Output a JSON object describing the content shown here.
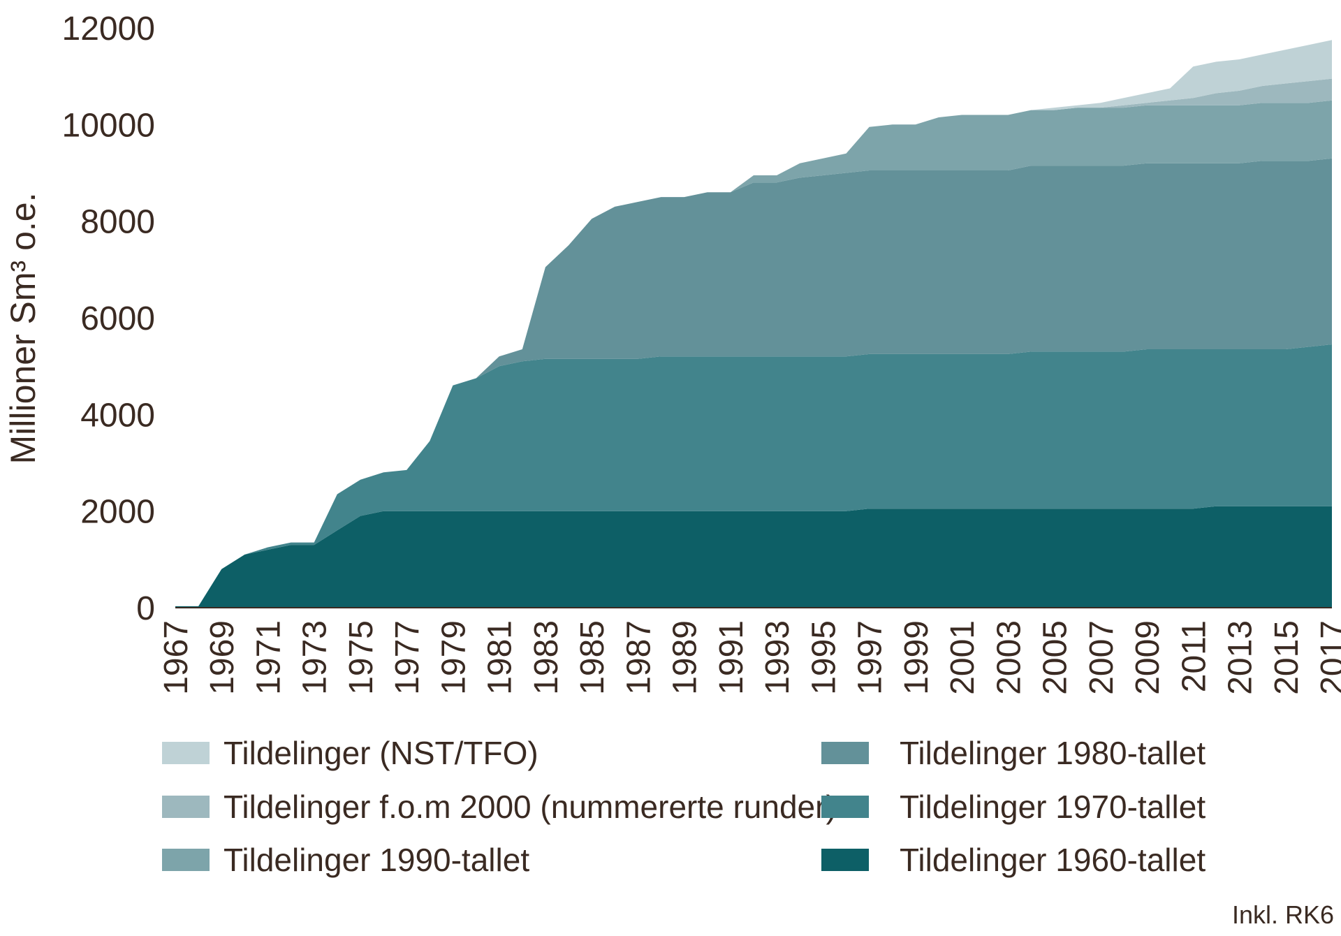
{
  "chart_data": {
    "type": "area",
    "stacked": true,
    "ylabel": "Millioner Sm³ o.e.",
    "xlabel": "",
    "title": "",
    "ylim": [
      0,
      12000
    ],
    "y_ticks": [
      0,
      2000,
      4000,
      6000,
      8000,
      10000,
      12000
    ],
    "x_tick_labels": [
      "1967",
      "1969",
      "1971",
      "1973",
      "1975",
      "1977",
      "1979",
      "1981",
      "1983",
      "1985",
      "1987",
      "1989",
      "1991",
      "1993",
      "1995",
      "1997",
      "1999",
      "2001",
      "2003",
      "2005",
      "2007",
      "2009",
      "2011",
      "2013",
      "2015",
      "2017"
    ],
    "x": [
      1967,
      1968,
      1969,
      1970,
      1971,
      1972,
      1973,
      1974,
      1975,
      1976,
      1977,
      1978,
      1979,
      1980,
      1981,
      1982,
      1983,
      1984,
      1985,
      1986,
      1987,
      1988,
      1989,
      1990,
      1991,
      1992,
      1993,
      1994,
      1995,
      1996,
      1997,
      1998,
      1999,
      2000,
      2001,
      2002,
      2003,
      2004,
      2005,
      2006,
      2007,
      2008,
      2009,
      2010,
      2011,
      2012,
      2013,
      2014,
      2015,
      2016,
      2017
    ],
    "series": [
      {
        "name": "Tildelinger 1960-tallet",
        "color": "#0d5f66",
        "values": [
          30,
          30,
          800,
          1100,
          1200,
          1300,
          1300,
          1600,
          1900,
          2000,
          2000,
          2000,
          2000,
          2000,
          2000,
          2000,
          2000,
          2000,
          2000,
          2000,
          2000,
          2000,
          2000,
          2000,
          2000,
          2000,
          2000,
          2000,
          2000,
          2000,
          2050,
          2050,
          2050,
          2050,
          2050,
          2050,
          2050,
          2050,
          2050,
          2050,
          2050,
          2050,
          2050,
          2050,
          2050,
          2100,
          2100,
          2100,
          2100,
          2100,
          2100
        ]
      },
      {
        "name": "Tildelinger 1970-tallet",
        "color": "#42848c",
        "values": [
          0,
          0,
          0,
          0,
          50,
          50,
          50,
          750,
          750,
          800,
          850,
          1450,
          2600,
          2750,
          3000,
          3100,
          3150,
          3150,
          3150,
          3150,
          3150,
          3200,
          3200,
          3200,
          3200,
          3200,
          3200,
          3200,
          3200,
          3200,
          3200,
          3200,
          3200,
          3200,
          3200,
          3200,
          3200,
          3250,
          3250,
          3250,
          3250,
          3250,
          3300,
          3300,
          3300,
          3250,
          3250,
          3250,
          3250,
          3300,
          3350
        ]
      },
      {
        "name": "Tildelinger 1980-tallet",
        "color": "#639199",
        "values": [
          0,
          0,
          0,
          0,
          0,
          0,
          0,
          0,
          0,
          0,
          0,
          0,
          0,
          0,
          200,
          250,
          1900,
          2350,
          2900,
          3150,
          3250,
          3300,
          3300,
          3400,
          3400,
          3600,
          3600,
          3700,
          3750,
          3800,
          3800,
          3800,
          3800,
          3800,
          3800,
          3800,
          3800,
          3850,
          3850,
          3850,
          3850,
          3850,
          3850,
          3850,
          3850,
          3850,
          3850,
          3900,
          3900,
          3850,
          3850
        ]
      },
      {
        "name": "Tildelinger 1990-tallet",
        "color": "#7da4aa",
        "values": [
          0,
          0,
          0,
          0,
          0,
          0,
          0,
          0,
          0,
          0,
          0,
          0,
          0,
          0,
          0,
          0,
          0,
          0,
          0,
          0,
          0,
          0,
          0,
          0,
          0,
          150,
          150,
          300,
          350,
          400,
          900,
          950,
          950,
          1100,
          1150,
          1150,
          1150,
          1150,
          1150,
          1200,
          1200,
          1200,
          1200,
          1200,
          1200,
          1200,
          1200,
          1200,
          1200,
          1200,
          1200
        ]
      },
      {
        "name": "Tildelinger f.o.m 2000 (nummererte runder)",
        "color": "#9db8be",
        "values": [
          0,
          0,
          0,
          0,
          0,
          0,
          0,
          0,
          0,
          0,
          0,
          0,
          0,
          0,
          0,
          0,
          0,
          0,
          0,
          0,
          0,
          0,
          0,
          0,
          0,
          0,
          0,
          0,
          0,
          0,
          0,
          0,
          0,
          0,
          0,
          0,
          0,
          0,
          0,
          0,
          0,
          50,
          50,
          100,
          150,
          250,
          300,
          350,
          400,
          450,
          450
        ]
      },
      {
        "name": "Tildelinger (NST/TFO)",
        "color": "#bfd2d6",
        "values": [
          0,
          0,
          0,
          0,
          0,
          0,
          0,
          0,
          0,
          0,
          0,
          0,
          0,
          0,
          0,
          0,
          0,
          0,
          0,
          0,
          0,
          0,
          0,
          0,
          0,
          0,
          0,
          0,
          0,
          0,
          0,
          0,
          0,
          0,
          0,
          0,
          0,
          0,
          50,
          50,
          100,
          150,
          200,
          250,
          650,
          650,
          650,
          650,
          700,
          750,
          800
        ]
      }
    ],
    "legend": {
      "placement": "bottom",
      "order": [
        "Tildelinger (NST/TFO)",
        "Tildelinger f.o.m 2000 (nummererte runder)",
        "Tildelinger 1990-tallet",
        "Tildelinger 1980-tallet",
        "Tildelinger 1970-tallet",
        "Tildelinger 1960-tallet"
      ]
    },
    "note": "Inkl. RK6",
    "grid": false
  }
}
